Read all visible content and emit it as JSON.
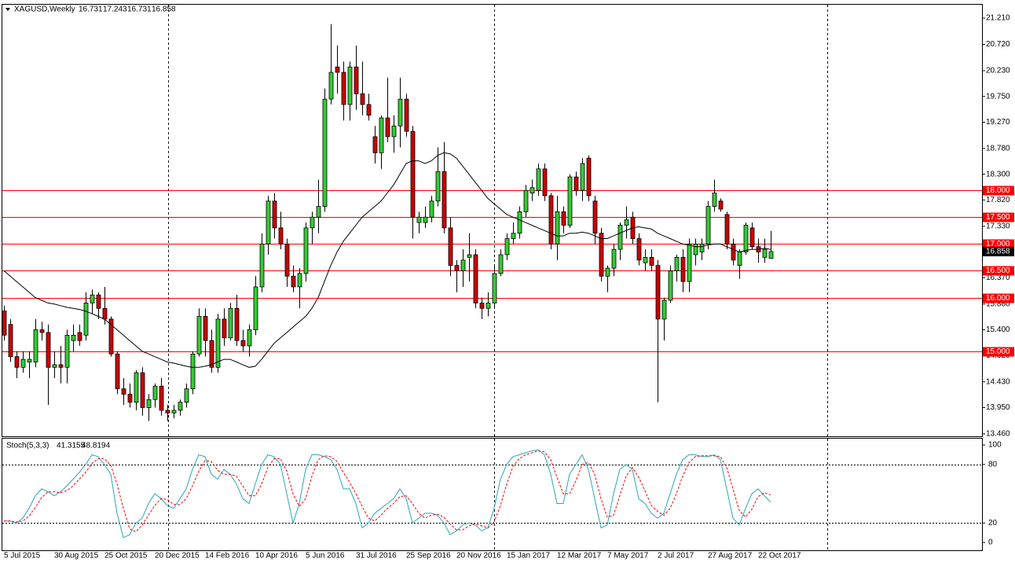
{
  "chart_data": [
    {
      "type": "candlestick",
      "title": "XAGUSD,Weekly",
      "categories": [
        "5 Jul 2015",
        null,
        null,
        null,
        null,
        null,
        null,
        null,
        "30 Aug 2015",
        null,
        null,
        null,
        null,
        null,
        null,
        null,
        "25 Oct 2015",
        null,
        null,
        null,
        null,
        null,
        null,
        null,
        "20 Dec 2015",
        null,
        null,
        null,
        null,
        null,
        null,
        null,
        "14 Feb 2016",
        null,
        null,
        null,
        null,
        null,
        null,
        null,
        "10 Apr 2016",
        null,
        null,
        null,
        null,
        null,
        null,
        null,
        "5 Jun 2016",
        null,
        null,
        null,
        null,
        null,
        null,
        null,
        "31 Jul 2016",
        null,
        null,
        null,
        null,
        null,
        null,
        null,
        "25 Sep 2016",
        null,
        null,
        null,
        null,
        null,
        null,
        null,
        "20 Nov 2016",
        null,
        null,
        null,
        null,
        null,
        null,
        null,
        "15 Jan 2017",
        null,
        null,
        null,
        null,
        null,
        null,
        null,
        "12 Mar 2017",
        null,
        null,
        null,
        null,
        null,
        null,
        null,
        "7 May 2017",
        null,
        null,
        null,
        null,
        null,
        null,
        null,
        "2 Jul 2017",
        null,
        null,
        null,
        null,
        null,
        null,
        null,
        "27 Aug 2017",
        null,
        null,
        null,
        null,
        null,
        null,
        null,
        "22 Oct 2017",
        null,
        null
      ],
      "open": [
        15.75,
        15.5,
        14.9,
        14.7,
        14.8,
        14.8,
        15.4,
        15.35,
        14.7,
        14.75,
        14.7,
        15.2,
        15.35,
        15.3,
        15.9,
        16.05,
        15.8,
        15.6,
        14.95,
        14.3,
        14.2,
        14.05,
        14.6,
        13.95,
        14.1,
        14.35,
        13.9,
        13.85,
        13.9,
        14.05,
        14.3,
        14.95,
        15.65,
        15.2,
        14.7,
        15.6,
        15.25,
        15.8,
        15.2,
        15.1,
        15.4,
        16.2,
        17.0,
        17.8,
        17.3,
        17.0,
        16.4,
        16.2,
        16.45,
        17.3,
        17.5,
        17.7,
        19.7,
        20.3,
        20.2,
        19.6,
        20.3,
        19.8,
        19.6,
        19.0,
        18.7,
        19.35,
        19.0,
        19.2,
        19.7,
        19.1,
        17.4,
        17.4,
        17.5,
        17.8,
        18.35,
        17.3,
        16.6,
        16.5,
        16.75,
        16.8,
        15.9,
        15.8,
        15.9,
        16.45,
        16.8,
        17.1,
        17.2,
        17.6,
        17.95,
        18.0,
        18.4,
        17.9,
        17.0,
        17.6,
        17.35,
        18.25,
        18.0,
        18.6,
        17.8,
        17.2,
        16.4,
        16.55,
        16.9,
        17.35,
        17.5,
        17.1,
        16.65,
        16.75,
        16.6,
        15.6,
        15.95,
        16.5,
        16.75,
        16.3,
        16.8,
        16.85,
        17.0,
        17.7,
        17.8,
        17.55,
        17.0,
        16.6,
        16.85,
        17.3,
        16.95,
        16.75,
        16.731
      ],
      "high": [
        15.85,
        15.6,
        15.0,
        15.0,
        15.0,
        15.6,
        15.55,
        15.5,
        15.0,
        15.1,
        15.4,
        15.5,
        15.5,
        16.1,
        16.15,
        16.1,
        16.2,
        15.65,
        15.0,
        14.5,
        14.4,
        14.65,
        14.7,
        14.2,
        14.4,
        14.5,
        14.0,
        14.0,
        14.1,
        14.4,
        15.0,
        15.8,
        15.8,
        15.4,
        15.7,
        15.8,
        15.9,
        16.05,
        15.4,
        15.5,
        16.4,
        17.2,
        17.9,
        17.95,
        17.6,
        17.1,
        16.6,
        16.55,
        17.4,
        17.6,
        18.2,
        19.9,
        21.1,
        20.7,
        20.4,
        20.4,
        20.7,
        20.4,
        19.8,
        19.2,
        19.4,
        20.1,
        19.4,
        20.1,
        19.8,
        19.2,
        17.6,
        17.7,
        17.9,
        18.8,
        18.9,
        17.5,
        16.7,
        16.9,
        17.2,
        16.9,
        16.0,
        16.1,
        16.6,
        16.9,
        17.2,
        17.4,
        17.7,
        18.1,
        18.2,
        18.5,
        18.5,
        17.95,
        17.9,
        17.7,
        18.3,
        18.35,
        18.6,
        18.65,
        17.9,
        17.3,
        16.6,
        17.0,
        17.4,
        17.7,
        17.6,
        17.2,
        16.9,
        16.9,
        16.7,
        16.0,
        16.6,
        16.8,
        16.9,
        17.1,
        17.1,
        17.1,
        17.8,
        18.2,
        17.85,
        17.6,
        17.1,
        16.9,
        17.4,
        17.4,
        17.1,
        17.1,
        17.243
      ],
      "low": [
        15.2,
        14.8,
        14.5,
        14.6,
        14.5,
        14.7,
        15.2,
        14.0,
        14.5,
        14.4,
        14.4,
        15.0,
        15.1,
        15.2,
        15.7,
        15.6,
        15.5,
        14.9,
        14.2,
        14.0,
        13.95,
        13.9,
        13.8,
        13.7,
        13.95,
        13.8,
        13.7,
        13.75,
        13.8,
        13.95,
        14.2,
        14.9,
        14.9,
        14.6,
        14.6,
        15.1,
        15.2,
        15.1,
        15.0,
        14.9,
        15.3,
        16.1,
        16.8,
        17.1,
        16.9,
        16.2,
        16.1,
        15.8,
        16.3,
        17.0,
        17.2,
        17.6,
        19.6,
        19.8,
        19.3,
        19.3,
        19.5,
        19.4,
        19.3,
        18.5,
        18.4,
        18.9,
        18.7,
        18.8,
        19.0,
        17.1,
        17.2,
        17.3,
        17.4,
        17.7,
        17.2,
        16.4,
        16.1,
        16.2,
        16.3,
        15.8,
        15.6,
        15.65,
        15.8,
        16.4,
        16.7,
        17.0,
        17.1,
        17.5,
        17.8,
        17.9,
        17.8,
        16.9,
        16.7,
        17.2,
        17.3,
        17.9,
        17.8,
        17.8,
        17.0,
        16.3,
        16.1,
        16.4,
        16.7,
        17.1,
        17.0,
        16.6,
        16.5,
        16.5,
        14.05,
        15.2,
        15.9,
        16.3,
        16.1,
        16.1,
        16.6,
        16.7,
        16.9,
        17.6,
        17.6,
        16.9,
        16.6,
        16.35,
        16.8,
        16.9,
        16.65,
        16.65,
        16.731
      ],
      "close": [
        15.3,
        14.9,
        14.7,
        14.85,
        14.85,
        15.4,
        15.35,
        14.7,
        14.75,
        14.7,
        15.3,
        15.3,
        15.2,
        15.9,
        16.05,
        15.8,
        15.6,
        14.95,
        14.3,
        14.2,
        14.05,
        14.6,
        13.95,
        14.1,
        14.35,
        13.9,
        13.85,
        13.9,
        14.05,
        14.3,
        14.95,
        15.65,
        15.2,
        14.7,
        15.6,
        15.25,
        15.8,
        15.2,
        15.1,
        15.4,
        16.2,
        17.0,
        17.8,
        17.3,
        17.0,
        16.4,
        16.2,
        16.45,
        17.3,
        17.5,
        17.7,
        19.7,
        20.2,
        20.2,
        19.6,
        20.3,
        19.8,
        19.6,
        19.4,
        18.7,
        19.35,
        19.0,
        19.2,
        19.7,
        19.1,
        17.5,
        17.5,
        17.5,
        17.8,
        18.35,
        17.3,
        16.6,
        16.5,
        16.7,
        16.8,
        15.9,
        15.8,
        15.9,
        16.45,
        16.8,
        17.1,
        17.2,
        17.6,
        18.0,
        18.05,
        18.4,
        17.9,
        17.0,
        17.6,
        17.35,
        18.25,
        18.0,
        18.5,
        17.9,
        17.2,
        16.4,
        16.55,
        16.9,
        17.35,
        17.45,
        17.1,
        16.7,
        16.75,
        16.6,
        15.6,
        15.95,
        16.5,
        16.75,
        16.3,
        17.0,
        17.0,
        17.0,
        17.7,
        17.95,
        17.65,
        17.0,
        16.7,
        16.85,
        17.35,
        16.95,
        16.85,
        16.9,
        16.858
      ],
      "up_color": "#33cc33",
      "down_color": "#cc0000",
      "moving_average": {
        "color": "#000000",
        "values": [
          16.5,
          16.4,
          16.3,
          16.2,
          16.1,
          16.0,
          15.95,
          15.9,
          15.88,
          15.85,
          15.82,
          15.8,
          15.78,
          15.75,
          15.7,
          15.65,
          15.6,
          15.5,
          15.4,
          15.3,
          15.2,
          15.1,
          15.0,
          14.95,
          14.9,
          14.85,
          14.8,
          14.78,
          14.75,
          14.72,
          14.7,
          14.7,
          14.72,
          14.75,
          14.8,
          14.85,
          14.85,
          14.8,
          14.75,
          14.7,
          14.72,
          14.85,
          15.0,
          15.15,
          15.25,
          15.35,
          15.45,
          15.55,
          15.65,
          15.8,
          16.0,
          16.3,
          16.6,
          16.85,
          17.05,
          17.2,
          17.35,
          17.5,
          17.6,
          17.7,
          17.8,
          17.95,
          18.1,
          18.3,
          18.5,
          18.55,
          18.55,
          18.5,
          18.55,
          18.65,
          18.7,
          18.68,
          18.6,
          18.45,
          18.3,
          18.15,
          18.0,
          17.85,
          17.75,
          17.65,
          17.55,
          17.5,
          17.45,
          17.4,
          17.35,
          17.3,
          17.25,
          17.2,
          17.15,
          17.15,
          17.2,
          17.2,
          17.22,
          17.2,
          17.15,
          17.1,
          17.1,
          17.15,
          17.2,
          17.25,
          17.3,
          17.32,
          17.3,
          17.28,
          17.2,
          17.15,
          17.1,
          17.05,
          17.0,
          16.98,
          16.95,
          16.95,
          16.98,
          17.0,
          17.0,
          16.95,
          16.9,
          16.85,
          16.88,
          16.9,
          16.9,
          16.92,
          16.9
        ]
      },
      "levels": [
        {
          "value": 18,
          "label": "18.000"
        },
        {
          "value": 17.5,
          "label": "17.500"
        },
        {
          "value": 17,
          "label": "17.000"
        },
        {
          "value": 16.5,
          "label": "16.500"
        },
        {
          "value": 16,
          "label": "16.000"
        },
        {
          "value": 15,
          "label": "15.000"
        }
      ],
      "level_color": "#ff0000",
      "ylim": [
        13.415,
        21.46
      ],
      "yticks": [
        {
          "value": 21.21,
          "label": "21.210"
        },
        {
          "value": 20.72,
          "label": "20.720"
        },
        {
          "value": 20.23,
          "label": "20.230"
        },
        {
          "value": 19.75,
          "label": "19.750"
        },
        {
          "value": 19.27,
          "label": "19.270"
        },
        {
          "value": 18.78,
          "label": "18.780"
        },
        {
          "value": 18.3,
          "label": "18.300"
        },
        {
          "value": 17.82,
          "label": "17.820"
        },
        {
          "value": 17.33,
          "label": "17.330"
        },
        {
          "value": 16.85,
          "label": "16.850"
        },
        {
          "value": 16.37,
          "label": "16.370"
        },
        {
          "value": 15.88,
          "label": "15.880"
        },
        {
          "value": 15.4,
          "label": "15.400"
        },
        {
          "value": 14.92,
          "label": "14.920"
        },
        {
          "value": 14.43,
          "label": "14.430"
        },
        {
          "value": 13.95,
          "label": "13.950"
        },
        {
          "value": 13.46,
          "label": "13.460"
        }
      ]
    },
    {
      "type": "line",
      "title": "Stoch(5,3,3)",
      "series": [
        {
          "color": "#2aa6b8",
          "dash": false,
          "values": [
            22,
            22,
            20,
            25,
            35,
            48,
            55,
            52,
            48,
            52,
            58,
            65,
            72,
            80,
            90,
            88,
            80,
            70,
            30,
            5,
            8,
            20,
            25,
            40,
            50,
            45,
            38,
            35,
            45,
            55,
            75,
            90,
            88,
            70,
            65,
            75,
            70,
            60,
            45,
            40,
            60,
            80,
            90,
            88,
            80,
            50,
            20,
            40,
            75,
            90,
            90,
            88,
            85,
            75,
            55,
            55,
            40,
            15,
            20,
            30,
            35,
            40,
            45,
            55,
            45,
            20,
            25,
            30,
            30,
            28,
            20,
            8,
            12,
            18,
            20,
            18,
            12,
            15,
            35,
            65,
            80,
            88,
            90,
            92,
            94,
            95,
            90,
            70,
            40,
            40,
            70,
            80,
            90,
            75,
            45,
            15,
            18,
            50,
            75,
            80,
            75,
            45,
            40,
            30,
            25,
            30,
            50,
            70,
            85,
            90,
            90,
            88,
            88,
            90,
            85,
            55,
            25,
            18,
            35,
            50,
            55,
            48,
            41.3155
          ]
        },
        {
          "color": "#ff0000",
          "dash": true,
          "values": [
            22,
            22,
            21,
            22,
            27,
            36,
            46,
            52,
            52,
            51,
            53,
            58,
            65,
            72,
            81,
            86,
            86,
            79,
            60,
            35,
            14,
            11,
            18,
            28,
            38,
            45,
            44,
            39,
            39,
            45,
            58,
            73,
            84,
            83,
            74,
            70,
            70,
            68,
            58,
            48,
            48,
            60,
            77,
            86,
            86,
            73,
            50,
            37,
            45,
            68,
            85,
            89,
            88,
            83,
            72,
            62,
            50,
            37,
            25,
            22,
            28,
            35,
            40,
            47,
            48,
            40,
            30,
            25,
            28,
            29,
            26,
            19,
            13,
            13,
            17,
            19,
            17,
            15,
            21,
            38,
            60,
            78,
            86,
            90,
            92,
            94,
            93,
            85,
            67,
            50,
            50,
            63,
            80,
            82,
            70,
            45,
            26,
            28,
            48,
            68,
            77,
            67,
            53,
            38,
            32,
            28,
            35,
            50,
            68,
            82,
            88,
            89,
            89,
            89,
            88,
            77,
            55,
            33,
            26,
            34,
            47,
            51,
            48.8194
          ]
        }
      ],
      "ylim": [
        -8,
        106.5
      ],
      "yticks": [
        0,
        20,
        80,
        100
      ],
      "levels": [
        20,
        80
      ]
    }
  ]
}
